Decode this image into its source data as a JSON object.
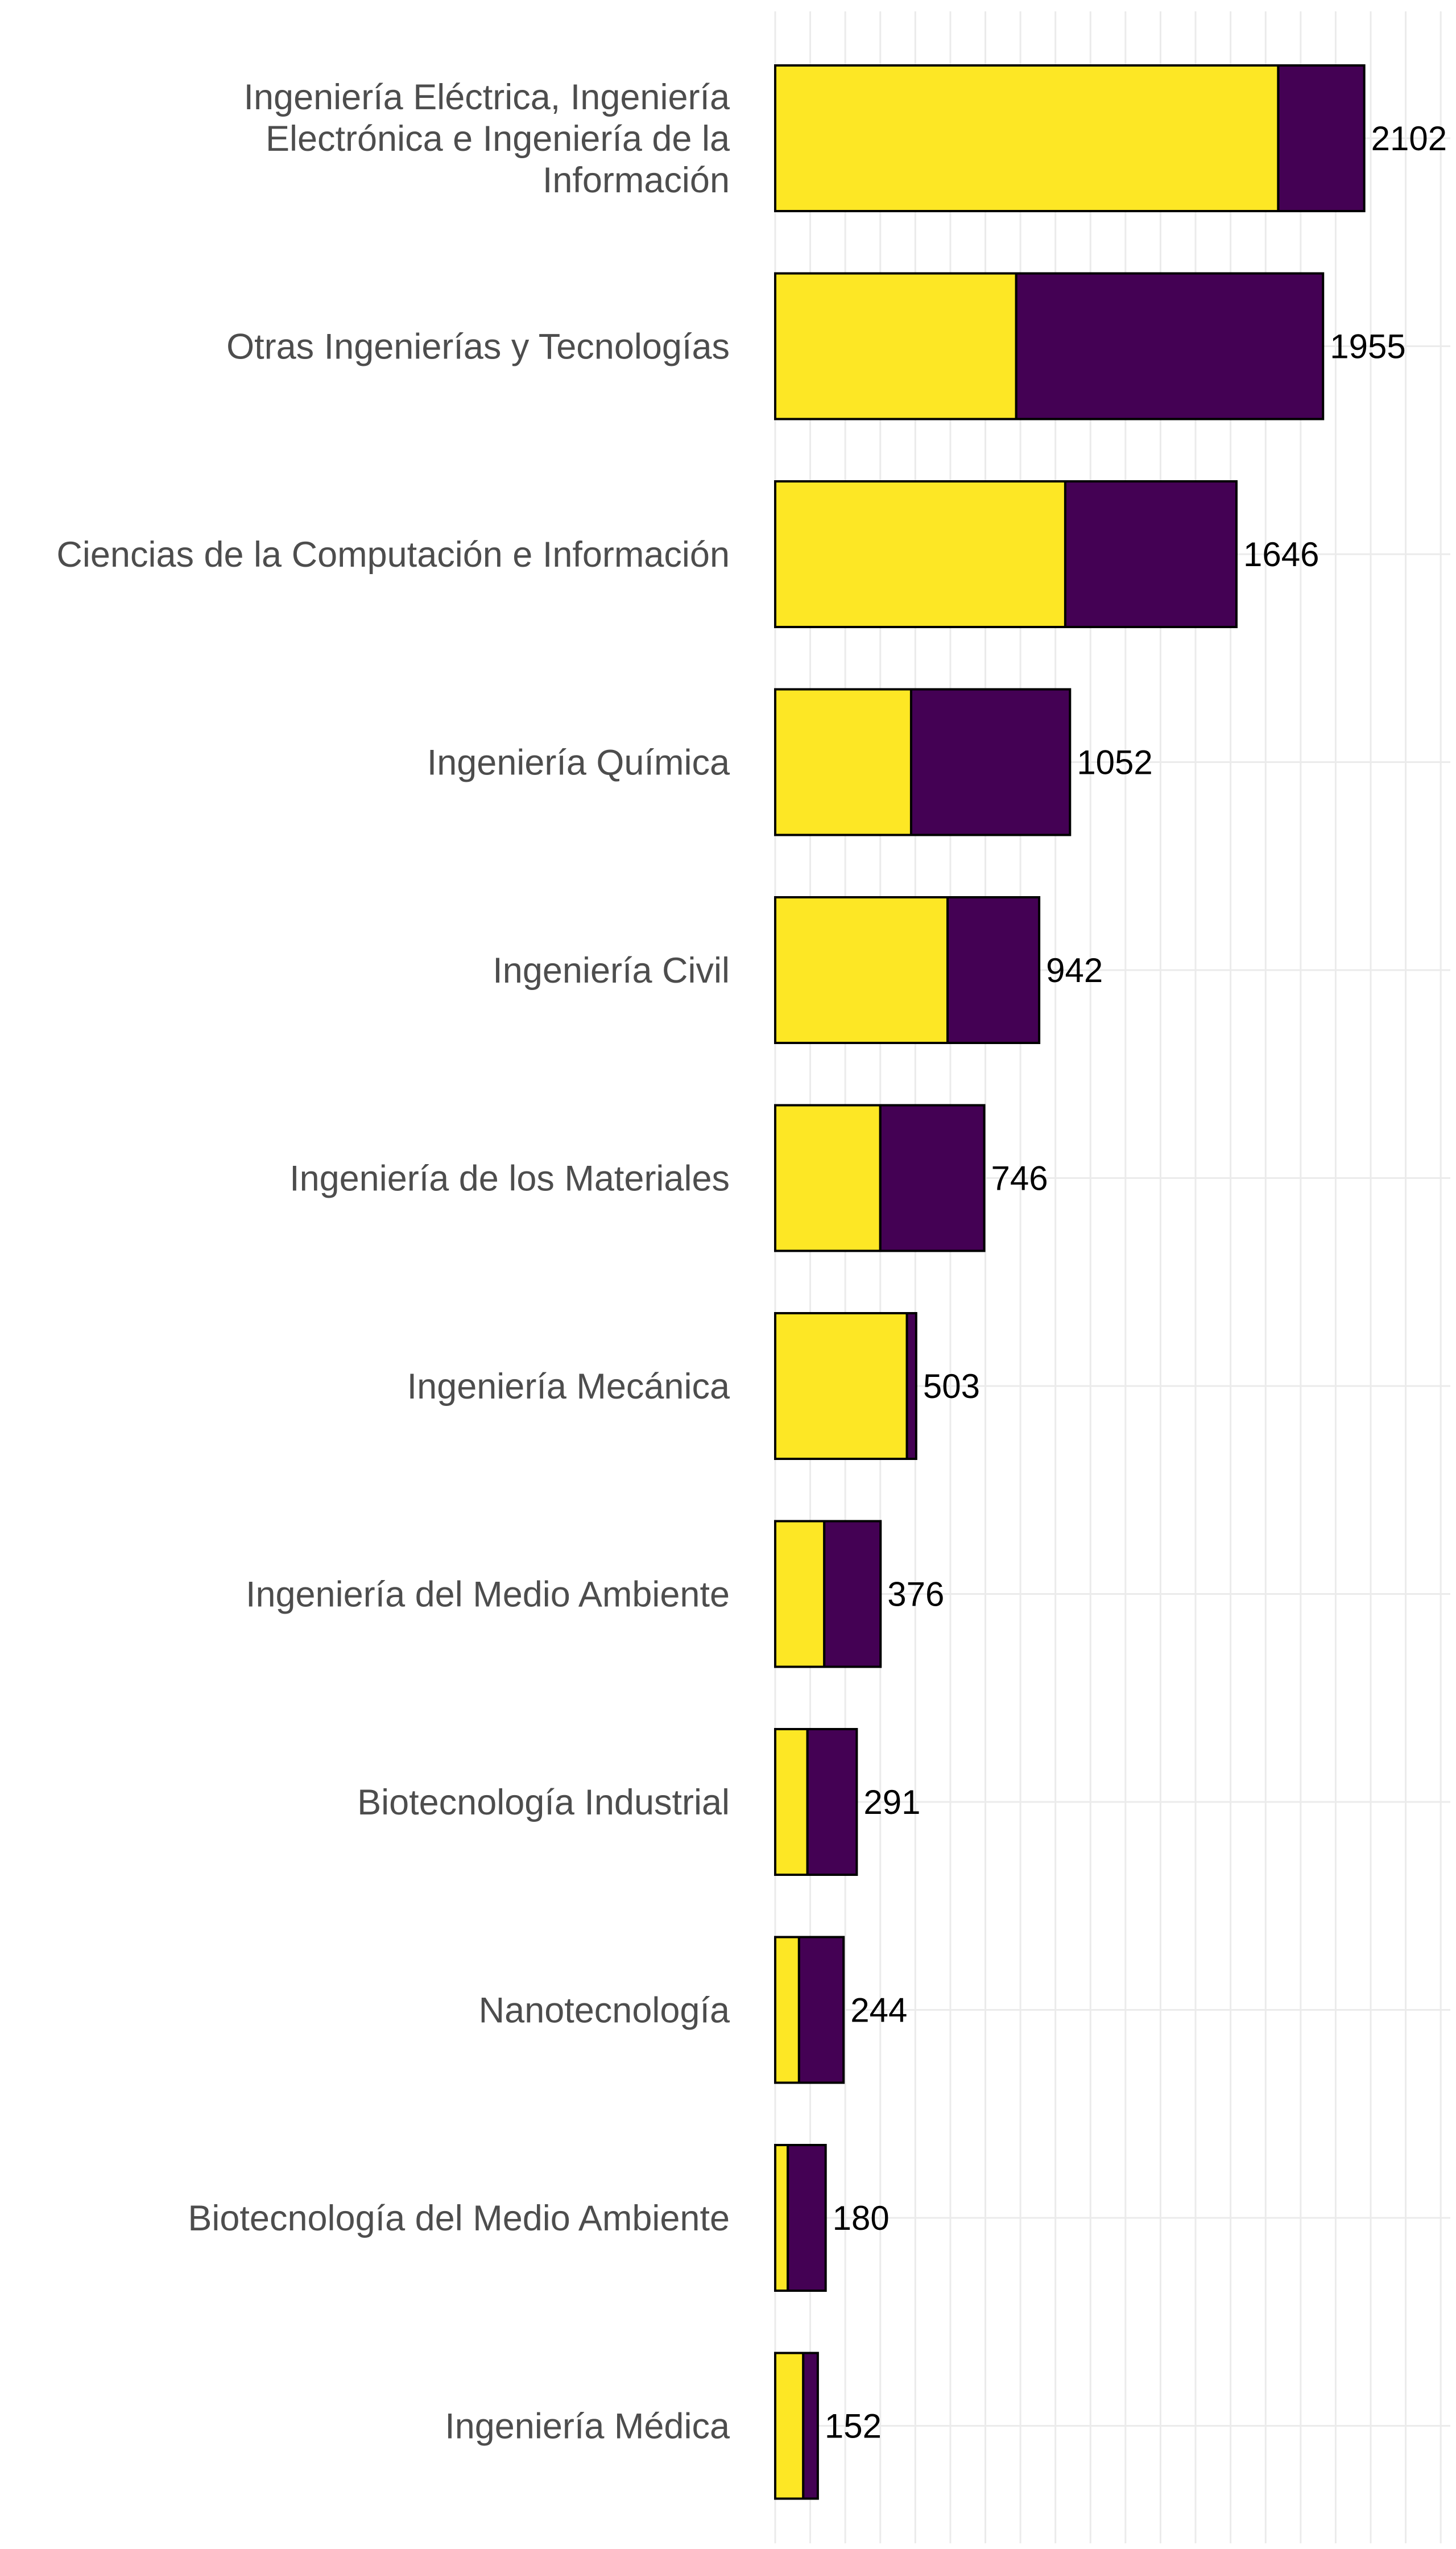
{
  "colors": {
    "segment_a": "#FDE725",
    "segment_b": "#440154",
    "background": "#FFFFFF",
    "grid": "#EBEBEB",
    "label_text": "#4D4D4D",
    "value_text": "#000000"
  },
  "chart_data": {
    "type": "bar",
    "orientation": "horizontal",
    "stacked": true,
    "title": "",
    "xlabel": "",
    "ylabel": "",
    "xlim": [
      0,
      2400
    ],
    "grid": true,
    "legend": "none",
    "categories": [
      [
        "Ingeniería Eléctrica, Ingeniería",
        "Electrónica e Ingeniería de la",
        "Información"
      ],
      [
        "Otras Ingenierías y Tecnologías"
      ],
      [
        "Ciencias de la Computación e Información"
      ],
      [
        "Ingeniería Química"
      ],
      [
        "Ingeniería Civil"
      ],
      [
        "Ingeniería de los Materiales"
      ],
      [
        "Ingeniería Mecánica"
      ],
      [
        "Ingeniería del Medio Ambiente"
      ],
      [
        "Biotecnología Industrial"
      ],
      [
        "Nanotecnología"
      ],
      [
        "Biotecnología del Medio Ambiente"
      ],
      [
        "Ingeniería Médica"
      ]
    ],
    "series": [
      {
        "color": "#FDE725",
        "values": [
          1795,
          860,
          1035,
          485,
          615,
          375,
          470,
          175,
          115,
          85,
          45,
          100
        ]
      },
      {
        "color": "#440154",
        "values": [
          307,
          1095,
          611,
          567,
          327,
          371,
          33,
          201,
          176,
          159,
          135,
          52
        ]
      }
    ],
    "totals": [
      "2102",
      "1955",
      "1646",
      "1052",
      "942",
      "746",
      "503",
      "376",
      "291",
      "244",
      "180",
      "152"
    ]
  }
}
